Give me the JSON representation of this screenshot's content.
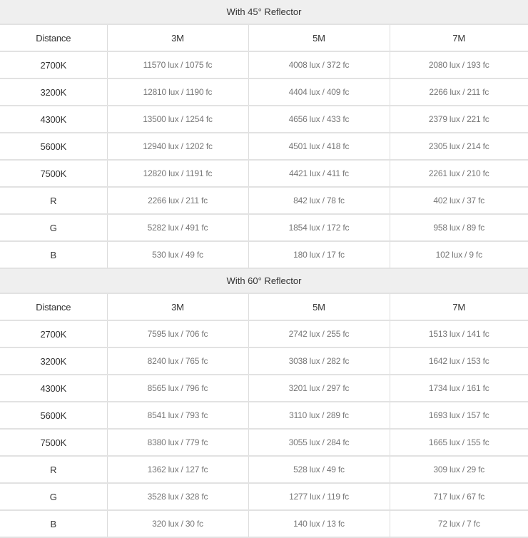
{
  "colors": {
    "title_bg": "#efefef",
    "border": "#e2e2e2",
    "label_text": "#333333",
    "value_text": "#777777"
  },
  "sections": [
    {
      "title": "With 45° Reflector",
      "headers": [
        "Distance",
        "3M",
        "5M",
        "7M"
      ],
      "rows": [
        {
          "label": "2700K",
          "values": [
            "11570 lux / 1075 fc",
            "4008 lux / 372 fc",
            "2080 lux / 193 fc"
          ]
        },
        {
          "label": "3200K",
          "values": [
            "12810 lux / 1190 fc",
            "4404 lux / 409 fc",
            "2266 lux / 211 fc"
          ]
        },
        {
          "label": "4300K",
          "values": [
            "13500 lux / 1254 fc",
            "4656 lux / 433 fc",
            "2379 lux / 221 fc"
          ]
        },
        {
          "label": "5600K",
          "values": [
            "12940 lux / 1202 fc",
            "4501 lux / 418 fc",
            "2305 lux / 214 fc"
          ]
        },
        {
          "label": "7500K",
          "values": [
            "12820 lux / 1191 fc",
            "4421 lux / 411 fc",
            "2261 lux / 210 fc"
          ]
        },
        {
          "label": "R",
          "values": [
            "2266 lux / 211 fc",
            "842 lux / 78 fc",
            "402 lux / 37 fc"
          ]
        },
        {
          "label": "G",
          "values": [
            "5282 lux / 491 fc",
            "1854 lux / 172 fc",
            "958 lux / 89 fc"
          ]
        },
        {
          "label": "B",
          "values": [
            "530 lux / 49 fc",
            "180 lux / 17 fc",
            "102 lux / 9 fc"
          ]
        }
      ]
    },
    {
      "title": "With 60° Reflector",
      "headers": [
        "Distance",
        "3M",
        "5M",
        "7M"
      ],
      "rows": [
        {
          "label": "2700K",
          "values": [
            "7595 lux / 706 fc",
            "2742 lux / 255 fc",
            "1513 lux / 141 fc"
          ]
        },
        {
          "label": "3200K",
          "values": [
            "8240 lux / 765 fc",
            "3038 lux / 282 fc",
            "1642 lux / 153 fc"
          ]
        },
        {
          "label": "4300K",
          "values": [
            "8565 lux / 796 fc",
            "3201 lux / 297 fc",
            "1734 lux / 161 fc"
          ]
        },
        {
          "label": "5600K",
          "values": [
            "8541 lux / 793 fc",
            "3110 lux / 289 fc",
            "1693 lux / 157 fc"
          ]
        },
        {
          "label": "7500K",
          "values": [
            "8380 lux / 779 fc",
            "3055 lux / 284 fc",
            "1665 lux / 155 fc"
          ]
        },
        {
          "label": "R",
          "values": [
            "1362 lux / 127 fc",
            "528 lux / 49 fc",
            "309 lux / 29 fc"
          ]
        },
        {
          "label": "G",
          "values": [
            "3528 lux / 328 fc",
            "1277 lux / 119 fc",
            "717 lux / 67 fc"
          ]
        },
        {
          "label": "B",
          "values": [
            "320 lux / 30 fc",
            "140 lux / 13 fc",
            "72 lux / 7 fc"
          ]
        }
      ]
    }
  ]
}
